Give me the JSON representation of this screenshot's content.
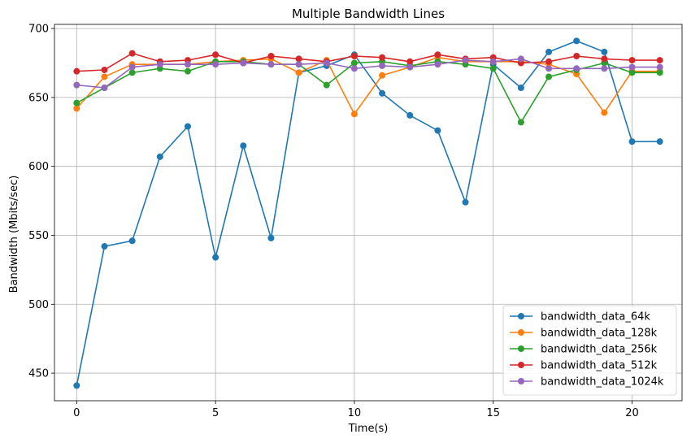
{
  "chart_data": {
    "type": "line",
    "title": "Multiple Bandwidth Lines",
    "xlabel": "Time(s)",
    "ylabel": "Bandwidth (Mbits/sec)",
    "xlim": [
      -0.8,
      21.8
    ],
    "ylim": [
      430,
      703
    ],
    "x_ticks": [
      0,
      5,
      10,
      15,
      20
    ],
    "y_ticks": [
      450,
      500,
      550,
      600,
      650,
      700
    ],
    "grid": true,
    "legend_position": "bottom-right",
    "x": [
      0,
      1,
      2,
      3,
      4,
      5,
      6,
      7,
      8,
      9,
      10,
      11,
      12,
      13,
      14,
      15,
      16,
      17,
      18,
      19,
      20,
      21
    ],
    "series": [
      {
        "name": "bandwidth_data_64k",
        "color": "#1f77b4",
        "values": [
          441,
          542,
          546,
          607,
          629,
          534,
          615,
          548,
          668,
          673,
          681,
          653,
          637,
          626,
          574,
          674,
          657,
          683,
          691,
          683,
          618,
          618
        ]
      },
      {
        "name": "bandwidth_data_128k",
        "color": "#ff7f0e",
        "values": [
          642,
          665,
          674,
          674,
          674,
          676,
          677,
          678,
          668,
          677,
          638,
          666,
          672,
          679,
          676,
          676,
          676,
          674,
          667,
          639,
          669,
          669
        ]
      },
      {
        "name": "bandwidth_data_256k",
        "color": "#2ca02c",
        "values": [
          646,
          657,
          668,
          671,
          669,
          676,
          676,
          674,
          674,
          659,
          675,
          676,
          673,
          676,
          674,
          671,
          632,
          665,
          670,
          675,
          668,
          668
        ]
      },
      {
        "name": "bandwidth_data_512k",
        "color": "#d62728",
        "values": [
          669,
          670,
          682,
          676,
          677,
          681,
          675,
          680,
          678,
          676,
          680,
          679,
          676,
          681,
          678,
          679,
          675,
          676,
          680,
          678,
          677,
          677
        ]
      },
      {
        "name": "bandwidth_data_1024k",
        "color": "#9467bd",
        "values": [
          659,
          657,
          672,
          674,
          674,
          674,
          675,
          674,
          674,
          675,
          671,
          673,
          672,
          674,
          677,
          676,
          678,
          671,
          671,
          671,
          672,
          672
        ]
      }
    ]
  }
}
